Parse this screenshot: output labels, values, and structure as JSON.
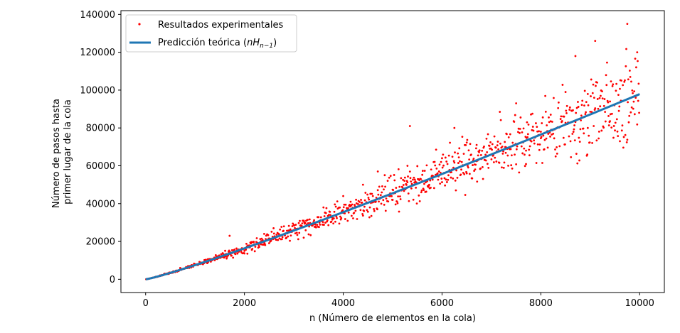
{
  "chart_data": {
    "type": "scatter",
    "title": "",
    "xlabel": "n (Número de elementos en la cola)",
    "ylabel_lines": [
      "Número de pasos hasta",
      "primer lugar de la cola"
    ],
    "xlim": [
      -500,
      10500
    ],
    "ylim": [
      -7000,
      142000
    ],
    "xticks": [
      0,
      2000,
      4000,
      6000,
      8000,
      10000
    ],
    "yticks": [
      0,
      20000,
      40000,
      60000,
      80000,
      100000,
      120000,
      140000
    ],
    "legend_position": "upper-left",
    "series": [
      {
        "name": "Resultados experimentales",
        "kind": "scatter",
        "color": "#ff0000",
        "sample_n_min": 10,
        "sample_n_max": 9990,
        "sample_step": 10,
        "relative_spread_approx": 0.12,
        "x": [
          300,
          700,
          1000,
          1300,
          1600,
          1700,
          2000,
          2400,
          2800,
          3200,
          3600,
          4000,
          4400,
          4700,
          5000,
          5300,
          5350,
          5600,
          6000,
          6250,
          6500,
          6700,
          7000,
          7300,
          7500,
          7700,
          8000,
          8200,
          8500,
          8700,
          8950,
          9100,
          9400,
          9600,
          9750,
          9950
        ],
        "y": [
          2000,
          6000,
          8000,
          10000,
          13000,
          23000,
          15000,
          24000,
          28000,
          31000,
          38000,
          44000,
          50000,
          57000,
          42000,
          60000,
          81000,
          52000,
          64000,
          80000,
          56000,
          71000,
          66000,
          77000,
          93000,
          68000,
          78000,
          87000,
          99000,
          118000,
          80000,
          126000,
          94000,
          73000,
          135000,
          120000
        ]
      },
      {
        "name": "Predicción teórica (nH_{n−1})",
        "legend_label_prefix": "Predicción teórica (",
        "legend_label_math_main": "nH",
        "legend_label_math_sub": "n−1",
        "legend_label_suffix": ")",
        "kind": "line",
        "color": "#1f77b4",
        "formula": "n * H(n-1)",
        "x_min": 1,
        "x_max": 10000
      }
    ]
  }
}
